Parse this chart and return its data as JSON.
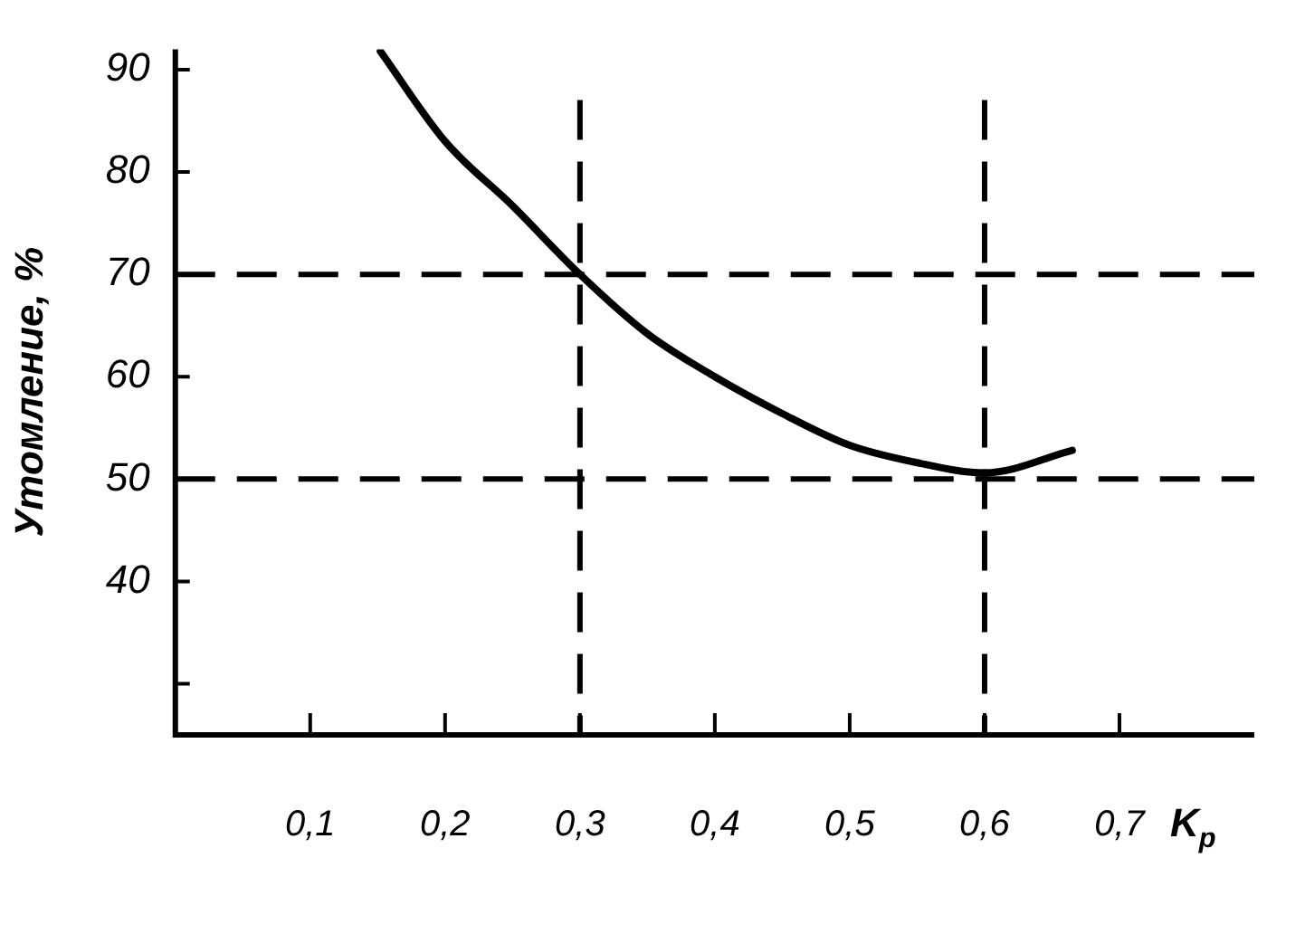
{
  "chart_data": {
    "type": "line",
    "xlabel": "K$_{p}$",
    "ylabel": "Утомление, %",
    "x": [
      0.152,
      0.2,
      0.25,
      0.3,
      0.35,
      0.4,
      0.45,
      0.5,
      0.55,
      0.6,
      0.665
    ],
    "series": [
      {
        "color": "#000000",
        "values": [
          91.8,
          83,
          76.7,
          70,
          64.2,
          60,
          56.4,
          53.3,
          51.6,
          50.6,
          52.8
        ]
      }
    ],
    "xlim": [
      0,
      0.8
    ],
    "ylim": [
      25,
      92
    ],
    "xticks": [
      {
        "value": 0.1,
        "label": "0,1"
      },
      {
        "value": 0.2,
        "label": "0,2"
      },
      {
        "value": 0.3,
        "label": "0,3"
      },
      {
        "value": 0.4,
        "label": "0,4"
      },
      {
        "value": 0.5,
        "label": "0,5"
      },
      {
        "value": 0.6,
        "label": "0,6"
      },
      {
        "value": 0.7,
        "label": "0,7"
      }
    ],
    "yticks": [
      {
        "value": 30,
        "label": null
      },
      40,
      50,
      60,
      70,
      80,
      90
    ],
    "ref_lines": [
      {
        "axis": "x",
        "value": 0.3,
        "line_style": "dashed"
      },
      {
        "axis": "x",
        "value": 0.6,
        "line_style": "dashed"
      },
      {
        "axis": "y",
        "value": 70,
        "line_style": "dashed"
      },
      {
        "axis": "y",
        "value": 50,
        "line_style": "dashed"
      }
    ],
    "grid": false,
    "legend": false,
    "marker": "none",
    "line_style": "solid"
  }
}
